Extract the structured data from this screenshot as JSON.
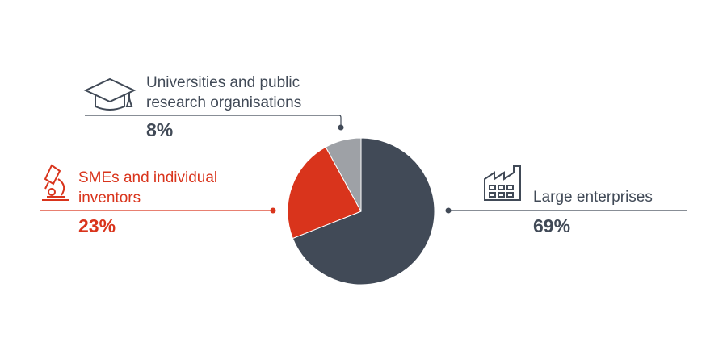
{
  "chart_data": {
    "type": "pie",
    "categories": [
      "Large enterprises",
      "SMEs and individual inventors",
      "Universities and public research organisations"
    ],
    "values": [
      69,
      23,
      8
    ],
    "value_labels": [
      "69%",
      "23%",
      "8%"
    ],
    "colors": [
      "#414a57",
      "#d9341c",
      "#9ea1a6"
    ]
  }
}
